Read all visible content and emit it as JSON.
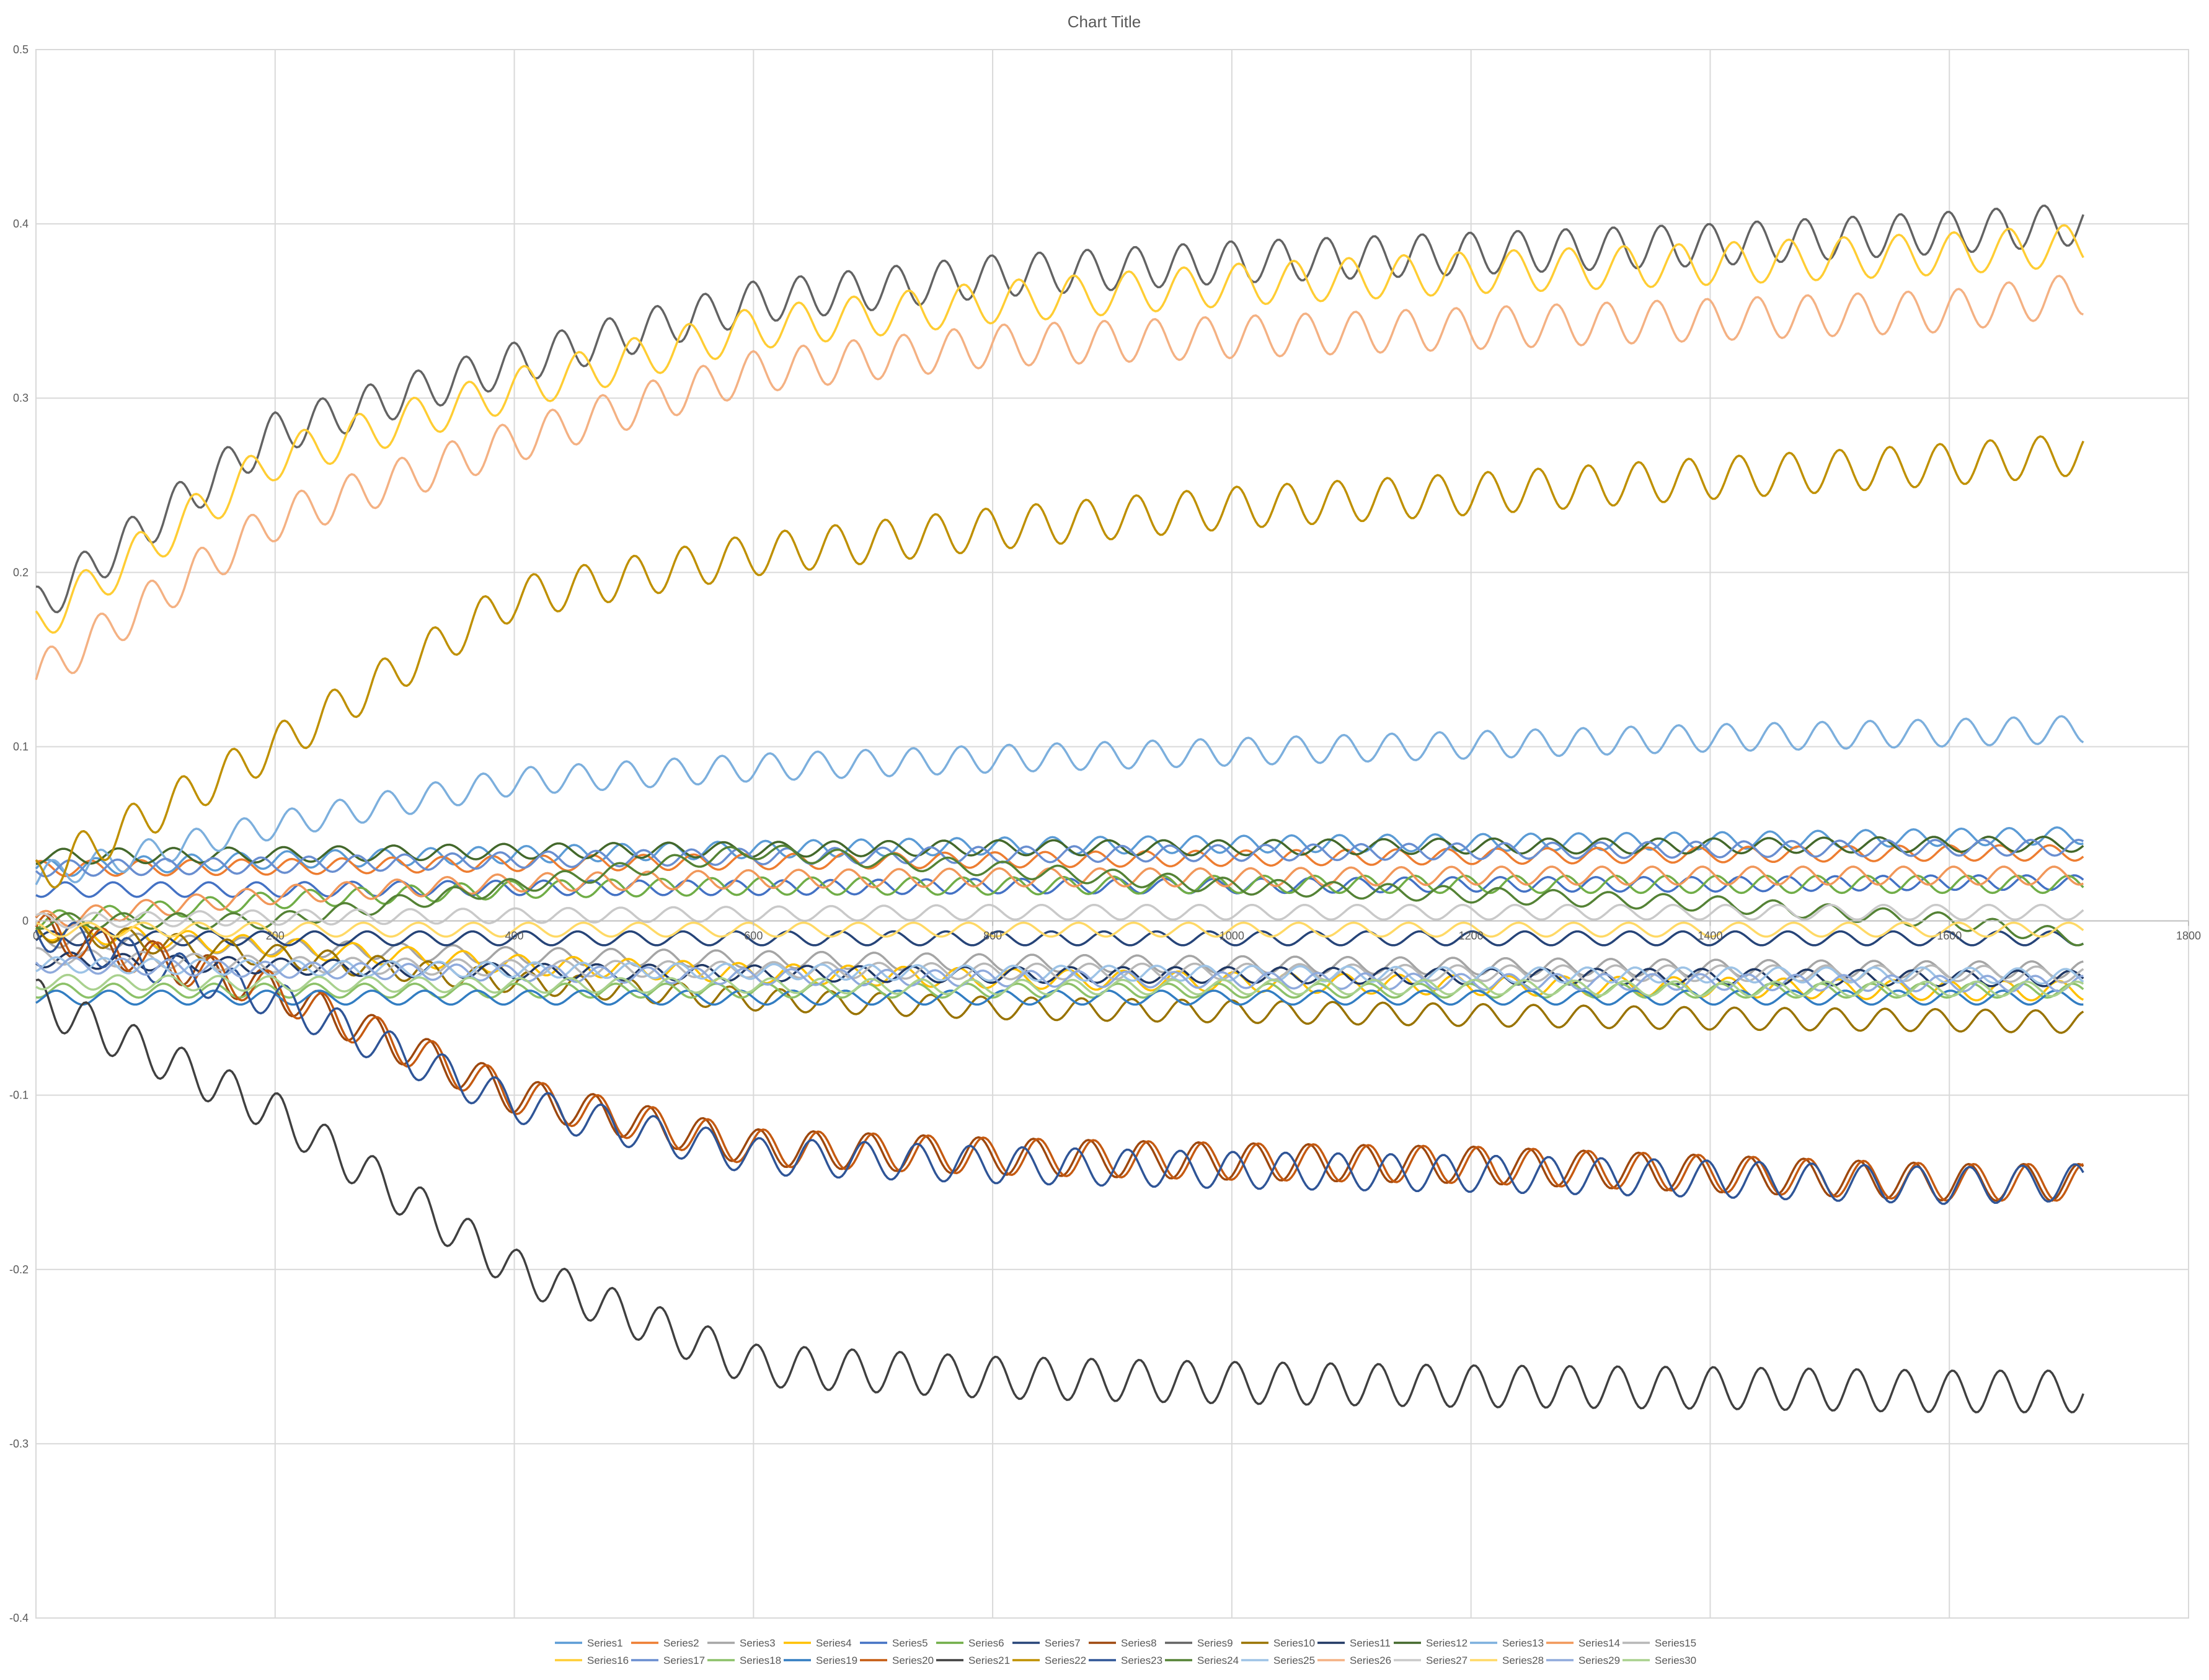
{
  "chart_data": {
    "type": "line",
    "title": "Chart Title",
    "xlabel": "",
    "ylabel": "",
    "xlim": [
      0,
      1800
    ],
    "ylim": [
      -0.4,
      0.5
    ],
    "x_ticks": [
      0,
      200,
      400,
      600,
      800,
      1000,
      1200,
      1400,
      1600,
      1800
    ],
    "y_ticks": [
      -0.4,
      -0.3,
      -0.2,
      -0.1,
      0,
      0.1,
      0.2,
      0.3,
      0.4,
      0.5
    ],
    "x_tick_labels": [
      "0",
      "200",
      "400",
      "600",
      "800",
      "1000",
      "1200",
      "1400",
      "1600",
      "1800"
    ],
    "y_tick_labels": [
      "-0.4",
      "-0.3",
      "-0.2",
      "-0.1",
      "0",
      "0.1",
      "0.2",
      "0.3",
      "0.4",
      "0.5"
    ],
    "grid": true,
    "legend_position": "bottom",
    "series": [
      {
        "name": "Series1",
        "color": "#5B9BD5",
        "x": [
          0,
          200,
          400,
          600,
          800,
          1000,
          1200,
          1400,
          1600,
          1712
        ],
        "values": [
          0.03,
          0.035,
          0.038,
          0.041,
          0.043,
          0.044,
          0.045,
          0.046,
          0.048,
          0.049
        ]
      },
      {
        "name": "Series2",
        "color": "#ED7D31",
        "x": [
          0,
          200,
          400,
          600,
          800,
          1000,
          1200,
          1400,
          1600,
          1712
        ],
        "values": [
          0.03,
          0.031,
          0.033,
          0.034,
          0.035,
          0.036,
          0.037,
          0.038,
          0.039,
          0.039
        ]
      },
      {
        "name": "Series3",
        "color": "#A5A5A5",
        "x": [
          0,
          200,
          400,
          600,
          800,
          1000,
          1200,
          1400,
          1600,
          1712
        ],
        "values": [
          -0.01,
          -0.015,
          -0.02,
          -0.022,
          -0.024,
          -0.025,
          -0.026,
          -0.027,
          -0.028,
          -0.028
        ]
      },
      {
        "name": "Series4",
        "color": "#FFC000",
        "x": [
          0,
          200,
          400,
          600,
          800,
          1000,
          1200,
          1400,
          1600,
          1712
        ],
        "values": [
          -0.005,
          -0.015,
          -0.025,
          -0.03,
          -0.033,
          -0.035,
          -0.037,
          -0.038,
          -0.04,
          -0.04
        ]
      },
      {
        "name": "Series5",
        "color": "#4472C4",
        "x": [
          0,
          200,
          400,
          600,
          800,
          1000,
          1200,
          1400,
          1600,
          1712
        ],
        "values": [
          0.018,
          0.018,
          0.019,
          0.019,
          0.02,
          0.02,
          0.021,
          0.021,
          0.022,
          0.022
        ]
      },
      {
        "name": "Series6",
        "color": "#70AD47",
        "x": [
          0,
          200,
          400,
          600,
          800,
          1000,
          1200,
          1400,
          1600,
          1712
        ],
        "values": [
          0.0,
          0.012,
          0.018,
          0.02,
          0.02,
          0.021,
          0.021,
          0.021,
          0.021,
          0.021
        ]
      },
      {
        "name": "Series7",
        "color": "#264478",
        "x": [
          0,
          200,
          400,
          600,
          800,
          1000,
          1200,
          1400,
          1600,
          1712
        ],
        "values": [
          -0.01,
          -0.01,
          -0.01,
          -0.01,
          -0.01,
          -0.01,
          -0.01,
          -0.01,
          -0.01,
          -0.01
        ]
      },
      {
        "name": "Series8",
        "color": "#9E480E",
        "x": [
          0,
          200,
          400,
          600,
          800,
          1000,
          1200,
          1400,
          1600,
          1712
        ],
        "values": [
          -0.005,
          -0.04,
          -0.1,
          -0.13,
          -0.135,
          -0.138,
          -0.14,
          -0.145,
          -0.15,
          -0.15
        ]
      },
      {
        "name": "Series9",
        "color": "#636363",
        "x": [
          0,
          200,
          400,
          600,
          800,
          1000,
          1200,
          1400,
          1600,
          1712
        ],
        "values": [
          0.18,
          0.28,
          0.32,
          0.355,
          0.37,
          0.378,
          0.383,
          0.388,
          0.395,
          0.4
        ]
      },
      {
        "name": "Series10",
        "color": "#997300",
        "x": [
          0,
          200,
          400,
          600,
          800,
          1000,
          1200,
          1400,
          1600,
          1712
        ],
        "values": [
          -0.005,
          -0.02,
          -0.035,
          -0.045,
          -0.05,
          -0.052,
          -0.054,
          -0.056,
          -0.057,
          -0.058
        ]
      },
      {
        "name": "Series11",
        "color": "#203864",
        "x": [
          0,
          200,
          400,
          600,
          800,
          1000,
          1200,
          1400,
          1600,
          1712
        ],
        "values": [
          -0.022,
          -0.026,
          -0.029,
          -0.03,
          -0.031,
          -0.031,
          -0.032,
          -0.032,
          -0.033,
          -0.033
        ]
      },
      {
        "name": "Series12",
        "color": "#43682B",
        "x": [
          0,
          200,
          400,
          600,
          800,
          1000,
          1200,
          1400,
          1600,
          1712
        ],
        "values": [
          0.037,
          0.038,
          0.04,
          0.041,
          0.042,
          0.042,
          0.043,
          0.043,
          0.044,
          0.044
        ]
      },
      {
        "name": "Series13",
        "color": "#7CAFDD",
        "x": [
          0,
          200,
          400,
          600,
          800,
          1000,
          1200,
          1400,
          1600,
          1712
        ],
        "values": [
          0.025,
          0.055,
          0.08,
          0.088,
          0.093,
          0.097,
          0.101,
          0.105,
          0.108,
          0.11
        ]
      },
      {
        "name": "Series14",
        "color": "#F1975A",
        "x": [
          0,
          200,
          400,
          600,
          800,
          1000,
          1200,
          1400,
          1600,
          1712
        ],
        "values": [
          0.0,
          0.015,
          0.022,
          0.024,
          0.025,
          0.025,
          0.026,
          0.026,
          0.026,
          0.026
        ]
      },
      {
        "name": "Series15",
        "color": "#B7B7B7",
        "x": [
          0,
          200,
          400,
          600,
          800,
          1000,
          1200,
          1400,
          1600,
          1712
        ],
        "values": [
          -0.02,
          -0.025,
          -0.027,
          -0.028,
          -0.029,
          -0.029,
          -0.03,
          -0.03,
          -0.03,
          -0.031
        ]
      },
      {
        "name": "Series16",
        "color": "#FFCD33",
        "x": [
          0,
          200,
          400,
          600,
          800,
          1000,
          1200,
          1400,
          1600,
          1712
        ],
        "values": [
          0.17,
          0.265,
          0.305,
          0.34,
          0.355,
          0.365,
          0.372,
          0.377,
          0.383,
          0.388
        ]
      },
      {
        "name": "Series17",
        "color": "#698ED0",
        "x": [
          0,
          200,
          400,
          600,
          800,
          1000,
          1200,
          1400,
          1600,
          1712
        ],
        "values": [
          0.03,
          0.032,
          0.035,
          0.037,
          0.038,
          0.039,
          0.04,
          0.041,
          0.042,
          0.042
        ]
      },
      {
        "name": "Series18",
        "color": "#8CC168",
        "x": [
          0,
          200,
          400,
          600,
          800,
          1000,
          1200,
          1400,
          1600,
          1712
        ],
        "values": [
          -0.04,
          -0.04,
          -0.04,
          -0.04,
          -0.04,
          -0.04,
          -0.04,
          -0.04,
          -0.04,
          -0.04
        ]
      },
      {
        "name": "Series19",
        "color": "#327DC2",
        "x": [
          0,
          200,
          400,
          600,
          800,
          1000,
          1200,
          1400,
          1600,
          1712
        ],
        "values": [
          -0.044,
          -0.044,
          -0.044,
          -0.044,
          -0.044,
          -0.044,
          -0.044,
          -0.044,
          -0.044,
          -0.044
        ]
      },
      {
        "name": "Series20",
        "color": "#C55A11",
        "x": [
          0,
          200,
          400,
          600,
          800,
          1000,
          1200,
          1400,
          1600,
          1712
        ],
        "values": [
          -0.005,
          -0.04,
          -0.1,
          -0.13,
          -0.135,
          -0.138,
          -0.14,
          -0.145,
          -0.15,
          -0.15
        ]
      },
      {
        "name": "Series21",
        "color": "#404040",
        "x": [
          0,
          200,
          400,
          600,
          800,
          1000,
          1200,
          1400,
          1600,
          1712
        ],
        "values": [
          -0.045,
          -0.11,
          -0.2,
          -0.255,
          -0.262,
          -0.265,
          -0.267,
          -0.268,
          -0.27,
          -0.27
        ]
      },
      {
        "name": "Series22",
        "color": "#BF9000",
        "x": [
          0,
          200,
          400,
          600,
          800,
          1000,
          1200,
          1400,
          1600,
          1712
        ],
        "values": [
          0.025,
          0.1,
          0.185,
          0.21,
          0.225,
          0.237,
          0.245,
          0.254,
          0.262,
          0.268
        ]
      },
      {
        "name": "Series23",
        "color": "#2F5597",
        "x": [
          0,
          200,
          400,
          600,
          800,
          1000,
          1200,
          1400,
          1600,
          1712
        ],
        "values": [
          -0.005,
          -0.045,
          -0.105,
          -0.135,
          -0.14,
          -0.143,
          -0.145,
          -0.148,
          -0.152,
          -0.15
        ]
      },
      {
        "name": "Series24",
        "color": "#548235",
        "x": [
          0,
          200,
          400,
          600,
          800,
          1000,
          1200,
          1400,
          1600,
          1712
        ],
        "values": [
          0.0,
          0.0,
          0.02,
          0.04,
          0.03,
          0.02,
          0.015,
          0.01,
          0.0,
          -0.01
        ]
      },
      {
        "name": "Series25",
        "color": "#9DC3E6",
        "x": [
          0,
          200,
          400,
          600,
          800,
          1000,
          1200,
          1400,
          1600,
          1712
        ],
        "values": [
          -0.025,
          -0.027,
          -0.028,
          -0.029,
          -0.03,
          -0.03,
          -0.031,
          -0.031,
          -0.031,
          -0.032
        ]
      },
      {
        "name": "Series26",
        "color": "#F4B183",
        "x": [
          0,
          200,
          400,
          600,
          800,
          1000,
          1200,
          1400,
          1600,
          1712
        ],
        "values": [
          0.14,
          0.23,
          0.275,
          0.315,
          0.33,
          0.335,
          0.34,
          0.345,
          0.35,
          0.36
        ]
      },
      {
        "name": "Series27",
        "color": "#C9C9C9",
        "x": [
          0,
          200,
          400,
          600,
          800,
          1000,
          1200,
          1400,
          1600,
          1712
        ],
        "values": [
          0.0,
          0.002,
          0.003,
          0.004,
          0.005,
          0.005,
          0.005,
          0.005,
          0.005,
          0.005
        ]
      },
      {
        "name": "Series28",
        "color": "#FFD966",
        "x": [
          0,
          200,
          400,
          600,
          800,
          1000,
          1200,
          1400,
          1600,
          1712
        ],
        "values": [
          -0.005,
          -0.005,
          -0.005,
          -0.005,
          -0.005,
          -0.005,
          -0.005,
          -0.005,
          -0.005,
          -0.005
        ]
      },
      {
        "name": "Series29",
        "color": "#8FAADC",
        "x": [
          0,
          200,
          400,
          600,
          800,
          1000,
          1200,
          1400,
          1600,
          1712
        ],
        "values": [
          -0.025,
          -0.028,
          -0.03,
          -0.032,
          -0.033,
          -0.034,
          -0.035,
          -0.035,
          -0.036,
          -0.036
        ]
      },
      {
        "name": "Series30",
        "color": "#A9D18E",
        "x": [
          0,
          200,
          400,
          600,
          800,
          1000,
          1200,
          1400,
          1600,
          1712
        ],
        "values": [
          -0.035,
          -0.036,
          -0.037,
          -0.037,
          -0.038,
          -0.038,
          -0.038,
          -0.039,
          -0.039,
          -0.039
        ]
      }
    ]
  }
}
